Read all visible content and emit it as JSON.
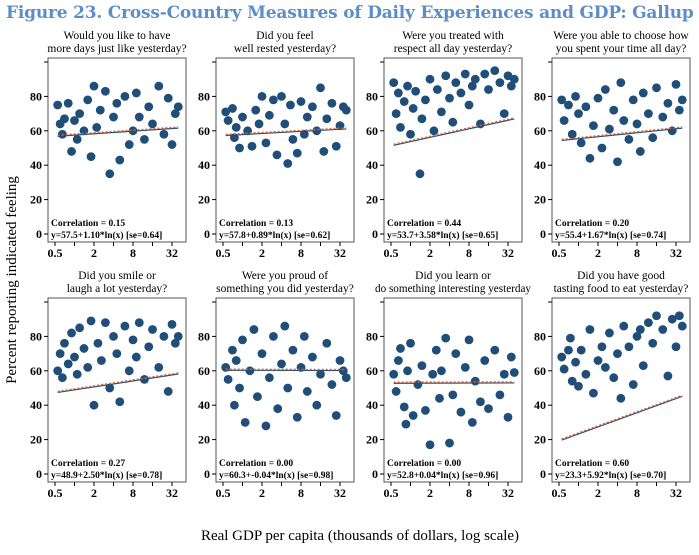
{
  "title": "Figure 23. Cross-Country Measures of Daily Experiences and GDP: Gallup World Poll",
  "chart_data": {
    "type": "scatter",
    "xlabel": "Real GDP per capita (thousands of dollars, log scale)",
    "ylabel": "Percent reporting indicated feeling",
    "xscale": "log",
    "xlim": [
      0.45,
      45
    ],
    "ylim": [
      0,
      100
    ],
    "xticks": [
      "0.5",
      "2",
      "8",
      "32"
    ],
    "yticks": [
      "0",
      "20",
      "40",
      "60",
      "80"
    ],
    "colors": {
      "points": "#1f4e79",
      "fit": "#1f4e79",
      "lowess": "#e06030",
      "title": "#5b8ec9"
    },
    "panels": [
      {
        "title": [
          "Would you like to have",
          "more days just like yesterday?"
        ],
        "correlation": "Correlation = 0.15",
        "equation": "y=57.5+1.10*ln(x) [se=0.64]",
        "a": 57.5,
        "b": 1.1,
        "points": [
          [
            0.55,
            75
          ],
          [
            0.6,
            64
          ],
          [
            0.65,
            58
          ],
          [
            0.7,
            67
          ],
          [
            0.8,
            76
          ],
          [
            0.9,
            48
          ],
          [
            1,
            66
          ],
          [
            1.1,
            55
          ],
          [
            1.2,
            70
          ],
          [
            1.4,
            60
          ],
          [
            1.6,
            78
          ],
          [
            1.8,
            45
          ],
          [
            2,
            86
          ],
          [
            2.2,
            62
          ],
          [
            2.5,
            72
          ],
          [
            3,
            83
          ],
          [
            3.5,
            35
          ],
          [
            4,
            68
          ],
          [
            4.5,
            76
          ],
          [
            5,
            43
          ],
          [
            6,
            80
          ],
          [
            7,
            52
          ],
          [
            8,
            60
          ],
          [
            9,
            82
          ],
          [
            10,
            68
          ],
          [
            12,
            55
          ],
          [
            14,
            74
          ],
          [
            16,
            64
          ],
          [
            20,
            86
          ],
          [
            24,
            58
          ],
          [
            28,
            79
          ],
          [
            32,
            52
          ],
          [
            36,
            70
          ],
          [
            40,
            74
          ]
        ]
      },
      {
        "title": [
          "Did you feel",
          "well rested yesterday?"
        ],
        "correlation": "Correlation = 0.13",
        "equation": "y=57.8+0.89*ln(x) [se=0.62]",
        "a": 57.8,
        "b": 0.89,
        "points": [
          [
            0.55,
            71
          ],
          [
            0.6,
            66
          ],
          [
            0.7,
            73
          ],
          [
            0.75,
            56
          ],
          [
            0.8,
            62
          ],
          [
            0.9,
            50
          ],
          [
            1,
            68
          ],
          [
            1.2,
            60
          ],
          [
            1.4,
            51
          ],
          [
            1.6,
            72
          ],
          [
            1.8,
            64
          ],
          [
            2,
            80
          ],
          [
            2.3,
            53
          ],
          [
            2.6,
            69
          ],
          [
            3,
            78
          ],
          [
            3.4,
            46
          ],
          [
            4,
            80
          ],
          [
            4.5,
            64
          ],
          [
            5,
            41
          ],
          [
            5.5,
            75
          ],
          [
            6,
            55
          ],
          [
            7,
            47
          ],
          [
            8,
            77
          ],
          [
            9,
            58
          ],
          [
            10,
            68
          ],
          [
            12,
            74
          ],
          [
            14,
            60
          ],
          [
            16,
            85
          ],
          [
            18,
            48
          ],
          [
            20,
            67
          ],
          [
            24,
            76
          ],
          [
            28,
            51
          ],
          [
            32,
            63
          ],
          [
            36,
            74
          ],
          [
            40,
            72
          ]
        ]
      },
      {
        "title": [
          "Were you treated with",
          "respect all day yesterday?"
        ],
        "correlation": "Correlation = 0.44",
        "equation": "y=53.7+3.58*ln(x) [se=0.65]",
        "a": 53.7,
        "b": 3.58,
        "points": [
          [
            0.55,
            88
          ],
          [
            0.6,
            70
          ],
          [
            0.65,
            82
          ],
          [
            0.7,
            62
          ],
          [
            0.8,
            77
          ],
          [
            0.9,
            86
          ],
          [
            1,
            58
          ],
          [
            1.1,
            73
          ],
          [
            1.2,
            83
          ],
          [
            1.4,
            35
          ],
          [
            1.5,
            67
          ],
          [
            1.7,
            78
          ],
          [
            2,
            90
          ],
          [
            2.3,
            60
          ],
          [
            2.6,
            84
          ],
          [
            3,
            71
          ],
          [
            3.5,
            92
          ],
          [
            4,
            79
          ],
          [
            4.5,
            65
          ],
          [
            5,
            88
          ],
          [
            6,
            82
          ],
          [
            7,
            93
          ],
          [
            8,
            75
          ],
          [
            9,
            86
          ],
          [
            10,
            90
          ],
          [
            12,
            64
          ],
          [
            14,
            93
          ],
          [
            16,
            84
          ],
          [
            20,
            95
          ],
          [
            24,
            88
          ],
          [
            28,
            70
          ],
          [
            32,
            92
          ],
          [
            36,
            86
          ],
          [
            40,
            90
          ]
        ]
      },
      {
        "title": [
          "Were you able to choose how",
          "you spent your time all day?"
        ],
        "correlation": "Correlation = 0.20",
        "equation": "y=55.4+1.67*ln(x) [se=0.74]",
        "a": 55.4,
        "b": 1.67,
        "points": [
          [
            0.55,
            78
          ],
          [
            0.6,
            66
          ],
          [
            0.7,
            75
          ],
          [
            0.8,
            58
          ],
          [
            0.9,
            80
          ],
          [
            1,
            70
          ],
          [
            1.1,
            53
          ],
          [
            1.3,
            74
          ],
          [
            1.5,
            44
          ],
          [
            1.7,
            63
          ],
          [
            2,
            79
          ],
          [
            2.3,
            50
          ],
          [
            2.6,
            84
          ],
          [
            3,
            61
          ],
          [
            3.5,
            72
          ],
          [
            4,
            42
          ],
          [
            4.5,
            88
          ],
          [
            5,
            66
          ],
          [
            6,
            55
          ],
          [
            7,
            78
          ],
          [
            8,
            64
          ],
          [
            9,
            48
          ],
          [
            10,
            82
          ],
          [
            12,
            70
          ],
          [
            14,
            56
          ],
          [
            16,
            85
          ],
          [
            20,
            68
          ],
          [
            24,
            76
          ],
          [
            28,
            60
          ],
          [
            32,
            87
          ],
          [
            36,
            72
          ],
          [
            40,
            78
          ]
        ]
      },
      {
        "title": [
          "Did you smile or",
          "laugh a lot yesterday?"
        ],
        "correlation": "Correlation = 0.27",
        "equation": "y=48.9+2.50*ln(x) [se=0.78]",
        "a": 48.9,
        "b": 2.5,
        "points": [
          [
            0.55,
            60
          ],
          [
            0.6,
            70
          ],
          [
            0.65,
            56
          ],
          [
            0.7,
            76
          ],
          [
            0.8,
            64
          ],
          [
            0.9,
            82
          ],
          [
            1,
            68
          ],
          [
            1.1,
            58
          ],
          [
            1.2,
            85
          ],
          [
            1.4,
            73
          ],
          [
            1.6,
            62
          ],
          [
            1.8,
            89
          ],
          [
            2,
            40
          ],
          [
            2.3,
            76
          ],
          [
            2.6,
            66
          ],
          [
            3,
            88
          ],
          [
            3.5,
            50
          ],
          [
            4,
            80
          ],
          [
            4.5,
            70
          ],
          [
            5,
            42
          ],
          [
            6,
            86
          ],
          [
            7,
            60
          ],
          [
            8,
            78
          ],
          [
            9,
            68
          ],
          [
            10,
            88
          ],
          [
            12,
            55
          ],
          [
            14,
            74
          ],
          [
            16,
            84
          ],
          [
            20,
            62
          ],
          [
            24,
            80
          ],
          [
            28,
            48
          ],
          [
            32,
            87
          ],
          [
            36,
            76
          ],
          [
            40,
            80
          ]
        ]
      },
      {
        "title": [
          "Were you proud of",
          "something you did yesterday?"
        ],
        "correlation": "Correlation = 0.00",
        "equation": "y=60.3+-0.04*ln(x) [se=0.98]",
        "a": 60.3,
        "b": -0.04,
        "points": [
          [
            0.55,
            62
          ],
          [
            0.6,
            55
          ],
          [
            0.7,
            72
          ],
          [
            0.75,
            40
          ],
          [
            0.8,
            66
          ],
          [
            0.9,
            50
          ],
          [
            1,
            78
          ],
          [
            1.1,
            30
          ],
          [
            1.3,
            60
          ],
          [
            1.5,
            84
          ],
          [
            1.7,
            45
          ],
          [
            2,
            70
          ],
          [
            2.3,
            28
          ],
          [
            2.6,
            56
          ],
          [
            3,
            80
          ],
          [
            3.5,
            38
          ],
          [
            4,
            64
          ],
          [
            4.5,
            86
          ],
          [
            5,
            50
          ],
          [
            6,
            72
          ],
          [
            7,
            33
          ],
          [
            8,
            62
          ],
          [
            9,
            80
          ],
          [
            10,
            48
          ],
          [
            12,
            68
          ],
          [
            14,
            40
          ],
          [
            16,
            58
          ],
          [
            20,
            76
          ],
          [
            24,
            52
          ],
          [
            28,
            34
          ],
          [
            32,
            66
          ],
          [
            36,
            60
          ],
          [
            40,
            56
          ]
        ]
      },
      {
        "title": [
          "Did you learn or",
          "do something interesting yesterday"
        ],
        "correlation": "Correlation = 0.00",
        "equation": "y=52.8+0.04*ln(x) [se=0.96]",
        "a": 52.8,
        "b": 0.04,
        "points": [
          [
            0.55,
            58
          ],
          [
            0.6,
            48
          ],
          [
            0.65,
            66
          ],
          [
            0.7,
            73
          ],
          [
            0.8,
            39
          ],
          [
            0.85,
            29
          ],
          [
            0.9,
            60
          ],
          [
            1,
            76
          ],
          [
            1.1,
            34
          ],
          [
            1.3,
            52
          ],
          [
            1.5,
            63
          ],
          [
            1.7,
            37
          ],
          [
            2,
            17
          ],
          [
            2.2,
            58
          ],
          [
            2.5,
            72
          ],
          [
            2.8,
            44
          ],
          [
            3,
            60
          ],
          [
            3.5,
            79
          ],
          [
            4,
            18
          ],
          [
            4.5,
            46
          ],
          [
            5,
            70
          ],
          [
            6,
            36
          ],
          [
            7,
            62
          ],
          [
            8,
            78
          ],
          [
            9,
            30
          ],
          [
            10,
            54
          ],
          [
            12,
            42
          ],
          [
            14,
            66
          ],
          [
            16,
            38
          ],
          [
            20,
            72
          ],
          [
            24,
            46
          ],
          [
            28,
            58
          ],
          [
            32,
            33
          ],
          [
            36,
            68
          ],
          [
            40,
            59
          ]
        ]
      },
      {
        "title": [
          "Did you have good",
          "tasting food to eat yesterday?"
        ],
        "correlation": "Correlation = 0.60",
        "equation": "y=23.3+5.92*ln(x) [se=0.70]",
        "a": 23.3,
        "b": 5.92,
        "points": [
          [
            0.55,
            68
          ],
          [
            0.6,
            61
          ],
          [
            0.7,
            72
          ],
          [
            0.75,
            79
          ],
          [
            0.8,
            54
          ],
          [
            0.9,
            65
          ],
          [
            1,
            51
          ],
          [
            1.1,
            72
          ],
          [
            1.3,
            58
          ],
          [
            1.5,
            84
          ],
          [
            1.7,
            47
          ],
          [
            2,
            66
          ],
          [
            2.3,
            74
          ],
          [
            2.6,
            62
          ],
          [
            3,
            82
          ],
          [
            3.5,
            56
          ],
          [
            4,
            70
          ],
          [
            4.5,
            44
          ],
          [
            5,
            86
          ],
          [
            6,
            74
          ],
          [
            7,
            52
          ],
          [
            8,
            80
          ],
          [
            9,
            84
          ],
          [
            10,
            63
          ],
          [
            12,
            88
          ],
          [
            14,
            76
          ],
          [
            16,
            92
          ],
          [
            20,
            84
          ],
          [
            24,
            57
          ],
          [
            28,
            90
          ],
          [
            32,
            74
          ],
          [
            36,
            92
          ],
          [
            40,
            86
          ]
        ]
      }
    ]
  }
}
